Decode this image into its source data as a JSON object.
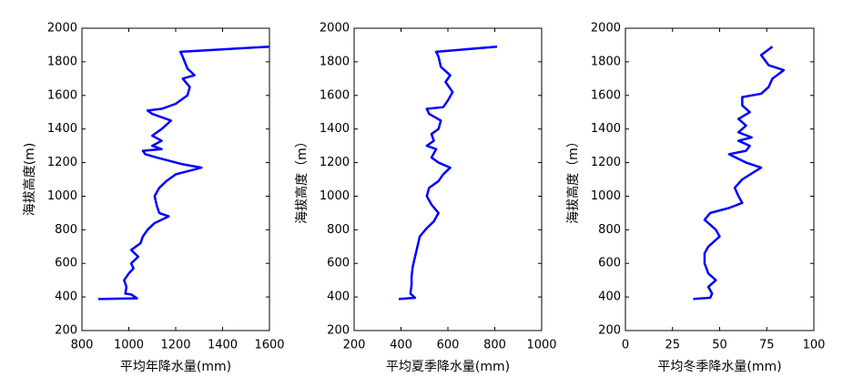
{
  "chart_data": [
    {
      "type": "line",
      "x_label": "平均年降水量(mm)",
      "y_label": "海拔高度(m)",
      "color": "#0000ff",
      "xlim": [
        800,
        1600
      ],
      "xticks": [
        800,
        1000,
        1200,
        1400,
        1600
      ],
      "ylim": [
        200,
        2000
      ],
      "yticks": [
        200,
        400,
        600,
        800,
        1000,
        1200,
        1400,
        1600,
        1800,
        2000
      ],
      "x": [
        870,
        1035,
        1010,
        985,
        990,
        980,
        1000,
        1020,
        1010,
        1040,
        1010,
        1050,
        1060,
        1080,
        1110,
        1170,
        1130,
        1120,
        1110,
        1130,
        1160,
        1200,
        1310,
        1230,
        1120,
        1070,
        1060,
        1140,
        1100,
        1140,
        1100,
        1140,
        1180,
        1100,
        1080,
        1140,
        1200,
        1250,
        1260,
        1230,
        1280,
        1250,
        1230,
        1220,
        1600
      ],
      "values": [
        388,
        392,
        415,
        420,
        460,
        500,
        540,
        570,
        600,
        640,
        680,
        720,
        760,
        800,
        840,
        880,
        900,
        940,
        1000,
        1050,
        1090,
        1130,
        1170,
        1190,
        1230,
        1250,
        1270,
        1280,
        1300,
        1330,
        1360,
        1400,
        1450,
        1490,
        1510,
        1520,
        1550,
        1600,
        1650,
        1700,
        1720,
        1760,
        1830,
        1860,
        1890
      ]
    },
    {
      "type": "line",
      "x_label": "平均夏季降水量(mm)",
      "y_label": "海拔高度（m）",
      "color": "#0000ff",
      "xlim": [
        200,
        1000
      ],
      "xticks": [
        200,
        400,
        600,
        800,
        1000
      ],
      "ylim": [
        200,
        2000
      ],
      "yticks": [
        200,
        400,
        600,
        800,
        1000,
        1200,
        1400,
        1600,
        1800,
        2000
      ],
      "x": [
        390,
        460,
        440,
        445,
        445,
        450,
        460,
        470,
        480,
        510,
        540,
        560,
        530,
        510,
        520,
        560,
        580,
        610,
        560,
        530,
        550,
        510,
        540,
        530,
        560,
        570,
        520,
        510,
        580,
        600,
        620,
        590,
        610,
        570,
        560,
        550,
        810
      ],
      "values": [
        388,
        395,
        420,
        470,
        520,
        580,
        640,
        700,
        760,
        810,
        850,
        900,
        950,
        1000,
        1050,
        1090,
        1130,
        1170,
        1200,
        1230,
        1280,
        1300,
        1330,
        1370,
        1400,
        1450,
        1490,
        1520,
        1530,
        1570,
        1620,
        1680,
        1720,
        1770,
        1830,
        1860,
        1890
      ]
    },
    {
      "type": "line",
      "x_label": "平均冬季降水量(mm)",
      "y_label": "海拔高度（m）",
      "color": "#0000ff",
      "xlim": [
        0,
        100
      ],
      "xticks": [
        0,
        25,
        50,
        75,
        100
      ],
      "ylim": [
        200,
        2000
      ],
      "yticks": [
        200,
        400,
        600,
        800,
        1000,
        1200,
        1400,
        1600,
        1800,
        2000
      ],
      "x": [
        36,
        45,
        46,
        44,
        48,
        44,
        42,
        42,
        44,
        50,
        48,
        44,
        42,
        45,
        55,
        62,
        60,
        58,
        62,
        72,
        64,
        55,
        64,
        66,
        60,
        67,
        60,
        64,
        60,
        66,
        62,
        62,
        72,
        76,
        78,
        84,
        76,
        72,
        78
      ],
      "values": [
        388,
        395,
        420,
        460,
        500,
        540,
        600,
        660,
        700,
        760,
        800,
        840,
        860,
        900,
        930,
        960,
        1000,
        1050,
        1100,
        1170,
        1200,
        1250,
        1270,
        1300,
        1330,
        1350,
        1380,
        1420,
        1460,
        1500,
        1540,
        1590,
        1610,
        1650,
        1700,
        1750,
        1780,
        1840,
        1890
      ]
    }
  ]
}
